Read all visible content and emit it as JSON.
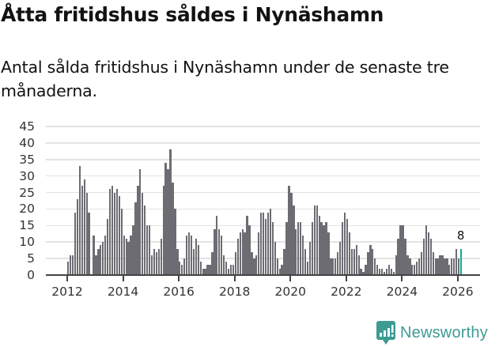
{
  "header": {
    "title": "Åtta fritidshus såldes i Nynäshamn",
    "subtitle": "Antal sålda fritidshus i Nynäshamn under de senaste tre månaderna."
  },
  "brand": {
    "name": "Newsworthy",
    "color": "#3d9b92",
    "icon": "bar-chart-speech-bubble-icon"
  },
  "colors": {
    "bar": "#6d6c72",
    "highlight": "#12a89a",
    "grid": "#e3e3e3",
    "axis": "#444444"
  },
  "chart_data": {
    "type": "bar",
    "title": "Åtta fritidshus såldes i Nynäshamn",
    "subtitle": "Antal sålda fritidshus i Nynäshamn under de senaste tre månaderna.",
    "xlabel": "",
    "ylabel": "",
    "ylim": [
      0,
      45
    ],
    "yticks": [
      0,
      5,
      10,
      15,
      20,
      25,
      30,
      35,
      40,
      45
    ],
    "xticks": [
      "2012",
      "2014",
      "2016",
      "2018",
      "2020",
      "2022",
      "2024",
      "2026"
    ],
    "grid": true,
    "legend": null,
    "annotation": {
      "label": "8",
      "target": "last bar"
    },
    "x_start": "2012-01",
    "x_end": "2026-02",
    "frequency": "monthly",
    "values": [
      4,
      6,
      6,
      19,
      23,
      33,
      27,
      29,
      25,
      19,
      0,
      12,
      6,
      8,
      9,
      10,
      12,
      17,
      26,
      27,
      25,
      26,
      24,
      20,
      12,
      11,
      10,
      12,
      15,
      22,
      27,
      32,
      25,
      21,
      15,
      15,
      6,
      8,
      7,
      8,
      11,
      27,
      34,
      32,
      38,
      28,
      20,
      8,
      4,
      3,
      5,
      12,
      13,
      12,
      8,
      11,
      9,
      4,
      2,
      2,
      3,
      3,
      7,
      14,
      18,
      14,
      12,
      6,
      4,
      2,
      3,
      3,
      7,
      11,
      13,
      14,
      13,
      18,
      15,
      7,
      5,
      6,
      13,
      19,
      19,
      17,
      19,
      20,
      16,
      10,
      5,
      2,
      3,
      8,
      16,
      27,
      25,
      21,
      14,
      16,
      16,
      12,
      8,
      4,
      10,
      16,
      21,
      21,
      18,
      16,
      15,
      16,
      13,
      5,
      5,
      5,
      7,
      10,
      16,
      19,
      17,
      13,
      8,
      8,
      9,
      6,
      2,
      1,
      3,
      7,
      9,
      8,
      5,
      3,
      2,
      2,
      1,
      2,
      3,
      2,
      1,
      6,
      11,
      15,
      15,
      11,
      6,
      5,
      3,
      3,
      4,
      5,
      7,
      11,
      15,
      13,
      11,
      7,
      5,
      5,
      6,
      6,
      5,
      5,
      3,
      5,
      5,
      8,
      5,
      8
    ]
  }
}
